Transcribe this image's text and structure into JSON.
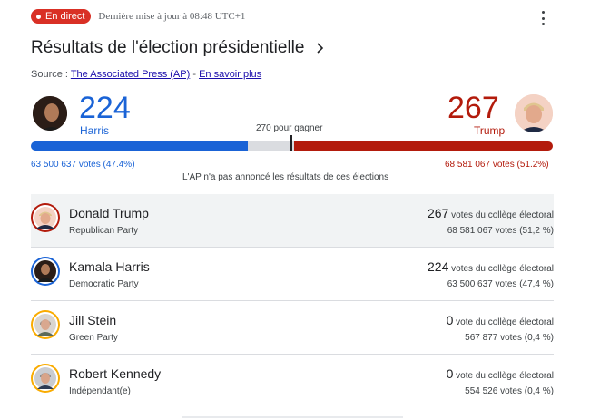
{
  "header": {
    "live_label": "En direct",
    "updated": "Dernière mise à jour à 08:48 UTC+1",
    "menu_icon": "more-vert-icon"
  },
  "title": "Résultats de l'élection présidentielle",
  "source": {
    "prefix": "Source : ",
    "publisher": "The Associated Press (AP)",
    "separator": " - ",
    "learn_more": "En savoir plus"
  },
  "summary": {
    "harris": {
      "electoral": "224",
      "label": "Harris",
      "popular": "63 500 637 votes (47.4%)",
      "color": "#1a63d6"
    },
    "trump": {
      "electoral": "267",
      "label": "Trump",
      "popular": "68 581 067 votes (51.2%)",
      "color": "#b31b0c"
    },
    "to_win": "270 pour gagner",
    "total_electoral": 538,
    "note": "L'AP n'a pas annoncé les résultats de ces élections"
  },
  "candidates": [
    {
      "name": "Donald Trump",
      "party": "Republican Party",
      "ev": "267",
      "ev_suffix": " votes du collège électoral",
      "popular": "68 581 067 votes (51,2 %)",
      "ring": "#b31b0c"
    },
    {
      "name": "Kamala Harris",
      "party": "Democratic Party",
      "ev": "224",
      "ev_suffix": " votes du collège électoral",
      "popular": "63 500 637 votes (47,4 %)",
      "ring": "#1a63d6"
    },
    {
      "name": "Jill Stein",
      "party": "Green Party",
      "ev": "0",
      "ev_suffix": " vote du collège électoral",
      "popular": "567 877 votes (0,4 %)",
      "ring": "#f9ab00"
    },
    {
      "name": "Robert Kennedy",
      "party": "Indépendant(e)",
      "ev": "0",
      "ev_suffix": " vote du collège électoral",
      "popular": "554 526 votes (0,4 %)",
      "ring": "#f9ab00"
    }
  ]
}
